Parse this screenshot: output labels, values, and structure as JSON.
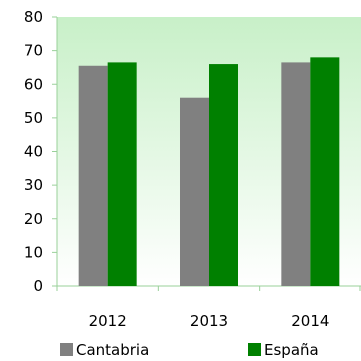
{
  "chart_data": {
    "type": "bar",
    "categories": [
      "2012",
      "2013",
      "2014"
    ],
    "series": [
      {
        "name": "Cantabria",
        "values": [
          65.5,
          56,
          66.5
        ],
        "color": "#808080"
      },
      {
        "name": "España",
        "values": [
          66.5,
          66,
          68
        ],
        "color": "#008000"
      }
    ],
    "y_ticks": [
      "0",
      "10",
      "20",
      "30",
      "40",
      "50",
      "60",
      "70",
      "80"
    ],
    "ylim": [
      0,
      80
    ],
    "grid": false,
    "legend_position": "bottom",
    "plot_background": "gradient light green to white",
    "colors": {
      "plot_top": "#c8f0c8",
      "plot_bottom": "#ffffff",
      "axis": "#9ad09a"
    }
  }
}
